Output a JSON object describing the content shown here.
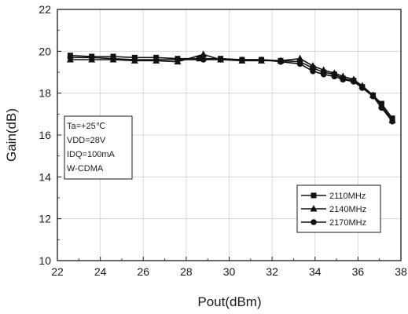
{
  "chart_data": {
    "type": "line",
    "xlabel": "Pout(dBm)",
    "ylabel": "Gain(dB)",
    "xlim": [
      22,
      38
    ],
    "ylim": [
      10,
      22
    ],
    "xticks": [
      22,
      24,
      26,
      28,
      30,
      32,
      34,
      36,
      38
    ],
    "yticks": [
      10,
      12,
      14,
      16,
      18,
      20,
      22
    ],
    "grid": true,
    "legend_position": "bottom-right",
    "annotation": [
      "Ta=+25℃",
      "VDD=28V",
      "IDQ=100mA",
      "W-CDMA"
    ],
    "series": [
      {
        "name": "2110MHz",
        "marker": "square",
        "x": [
          22.6,
          23.6,
          24.6,
          25.6,
          26.6,
          27.6,
          28.6,
          29.6,
          30.6,
          31.5,
          32.4,
          33.3,
          33.9,
          34.4,
          34.9,
          35.3,
          35.8,
          36.2,
          36.7,
          37.1,
          37.6
        ],
        "y": [
          19.8,
          19.75,
          19.75,
          19.7,
          19.7,
          19.65,
          19.65,
          19.65,
          19.6,
          19.6,
          19.55,
          19.5,
          19.2,
          19.0,
          18.9,
          18.7,
          18.6,
          18.3,
          17.9,
          17.5,
          16.8
        ]
      },
      {
        "name": "2140MHz",
        "marker": "triangle",
        "x": [
          22.6,
          23.6,
          24.6,
          25.6,
          26.6,
          27.6,
          28.8,
          29.6,
          30.6,
          31.5,
          32.4,
          33.3,
          33.9,
          34.4,
          34.9,
          35.3,
          35.8,
          36.2,
          36.7,
          37.1,
          37.6
        ],
        "y": [
          19.6,
          19.6,
          19.6,
          19.55,
          19.55,
          19.5,
          19.85,
          19.6,
          19.55,
          19.55,
          19.55,
          19.65,
          19.3,
          19.1,
          18.95,
          18.8,
          18.65,
          18.35,
          17.9,
          17.4,
          16.7
        ]
      },
      {
        "name": "2170MHz",
        "marker": "circle",
        "x": [
          22.6,
          23.6,
          24.6,
          25.6,
          26.6,
          27.6,
          28.8,
          29.6,
          30.6,
          31.5,
          32.4,
          33.3,
          33.9,
          34.4,
          34.9,
          35.3,
          35.8,
          36.2,
          36.7,
          37.1,
          37.6
        ],
        "y": [
          19.7,
          19.7,
          19.65,
          19.6,
          19.6,
          19.6,
          19.6,
          19.6,
          19.6,
          19.6,
          19.5,
          19.4,
          19.05,
          18.9,
          18.8,
          18.65,
          18.55,
          18.25,
          17.85,
          17.3,
          16.65
        ]
      }
    ]
  }
}
